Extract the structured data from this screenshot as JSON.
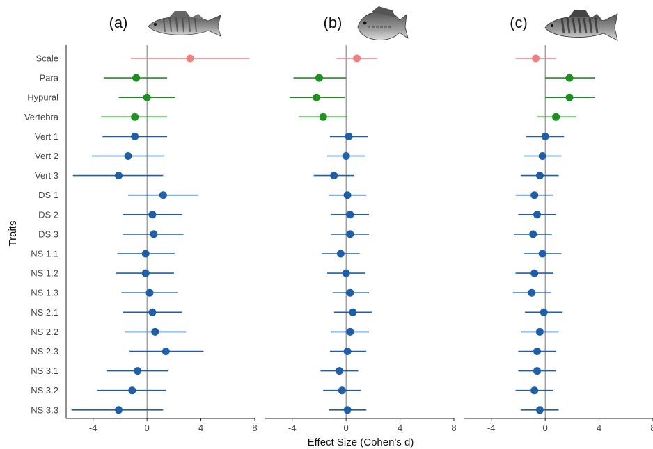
{
  "chart_data": {
    "type": "forest",
    "xlabel": "Effect Size (Cohen's d)",
    "ylabel": "Traits",
    "xlim": [
      -6,
      8
    ],
    "xticks": [
      -4,
      0,
      4,
      8
    ],
    "xtick_labels": [
      "-4",
      "0",
      "4",
      "8"
    ],
    "grid": false,
    "categories": [
      "Scale",
      "Para",
      "Hypural",
      "Vertebra",
      "Vert 1",
      "Vert 2",
      "Vert 3",
      "DS 1",
      "DS 2",
      "DS 3",
      "NS 1.1",
      "NS 1.2",
      "NS 1.3",
      "NS 2.1",
      "NS 2.2",
      "NS 2.3",
      "NS 3.1",
      "NS 3.2",
      "NS 3.3"
    ],
    "group_colors": {
      "scale": "#f08080",
      "green": "#1f8f1f",
      "blue": "#1f5fa8"
    },
    "trait_groups": [
      "scale",
      "green",
      "green",
      "green",
      "blue",
      "blue",
      "blue",
      "blue",
      "blue",
      "blue",
      "blue",
      "blue",
      "blue",
      "blue",
      "blue",
      "blue",
      "blue",
      "blue",
      "blue"
    ],
    "panels": [
      {
        "label": "(a)",
        "fish_icon": "fish-perch-icon",
        "estimates": [
          3.2,
          -0.8,
          0.0,
          -0.9,
          -0.9,
          -1.4,
          -2.1,
          1.2,
          0.4,
          0.5,
          -0.1,
          -0.1,
          0.2,
          0.4,
          0.6,
          1.4,
          -0.7,
          -1.1,
          -2.1
        ],
        "lower": [
          -1.2,
          -3.2,
          -2.1,
          -3.4,
          -3.3,
          -4.1,
          -5.5,
          -1.4,
          -1.8,
          -1.8,
          -2.2,
          -2.3,
          -1.9,
          -1.8,
          -1.6,
          -1.3,
          -3.0,
          -3.7,
          -5.6
        ],
        "upper": [
          7.6,
          1.5,
          2.1,
          1.5,
          1.5,
          1.3,
          1.2,
          3.8,
          2.6,
          2.7,
          2.1,
          2.0,
          2.3,
          2.6,
          2.9,
          4.2,
          1.6,
          1.4,
          1.2
        ]
      },
      {
        "label": "(b)",
        "fish_icon": "fish-sunfish-icon",
        "estimates": [
          0.8,
          -2.0,
          -2.2,
          -1.7,
          0.2,
          0.0,
          -0.9,
          0.1,
          0.3,
          0.3,
          -0.4,
          0.0,
          0.3,
          0.5,
          0.3,
          0.1,
          -0.5,
          -0.3,
          0.1
        ],
        "lower": [
          -0.7,
          -3.9,
          -4.2,
          -3.5,
          -1.2,
          -1.4,
          -2.4,
          -1.3,
          -1.1,
          -1.1,
          -1.8,
          -1.4,
          -1.0,
          -0.9,
          -1.1,
          -1.2,
          -1.9,
          -1.7,
          -1.3
        ],
        "upper": [
          2.3,
          0.0,
          -0.1,
          0.1,
          1.6,
          1.4,
          0.6,
          1.5,
          1.7,
          1.7,
          1.0,
          1.4,
          1.7,
          1.9,
          1.7,
          1.5,
          0.9,
          1.1,
          1.5
        ]
      },
      {
        "label": "(c)",
        "fish_icon": "fish-yellow-perch-icon",
        "estimates": [
          -0.7,
          1.8,
          1.8,
          0.8,
          0.0,
          -0.2,
          -0.4,
          -0.8,
          -0.6,
          -0.9,
          -0.2,
          -0.8,
          -1.0,
          -0.1,
          -0.4,
          -0.6,
          -0.6,
          -0.8,
          -0.4
        ],
        "lower": [
          -2.2,
          0.0,
          0.0,
          -0.6,
          -1.4,
          -1.6,
          -1.8,
          -2.2,
          -2.0,
          -2.3,
          -1.6,
          -2.2,
          -2.4,
          -1.5,
          -1.8,
          -2.0,
          -2.0,
          -2.2,
          -1.8
        ],
        "upper": [
          0.8,
          3.7,
          3.7,
          2.3,
          1.4,
          1.2,
          1.0,
          0.6,
          0.8,
          0.5,
          1.2,
          0.6,
          0.4,
          1.3,
          1.0,
          0.8,
          0.8,
          0.6,
          1.0
        ]
      }
    ]
  }
}
